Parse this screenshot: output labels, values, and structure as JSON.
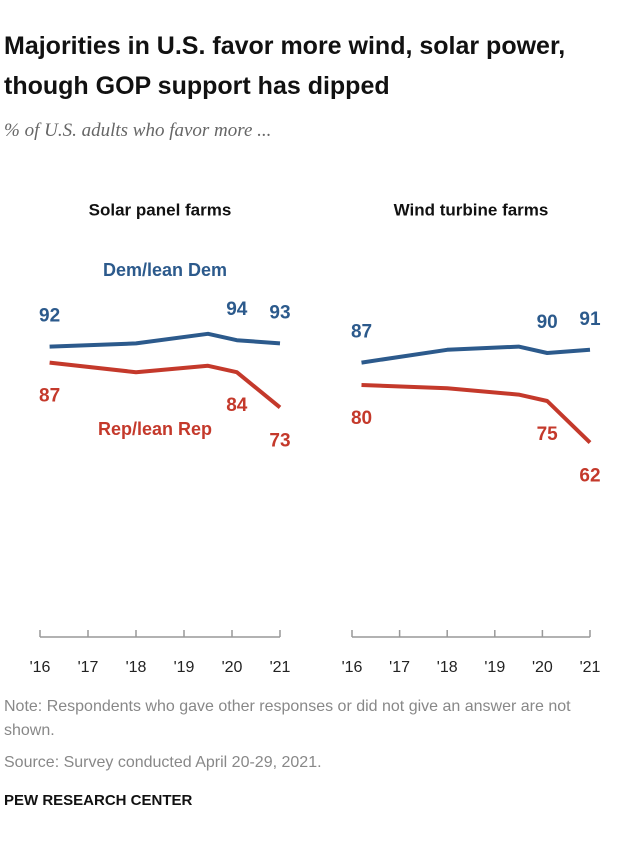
{
  "title": "Majorities in U.S. favor more wind, solar power, though GOP support has dipped",
  "subtitle": "% of U.S. adults who favor more ...",
  "note": "Note: Respondents who gave other responses or did not give an answer are not shown.",
  "source": "Source: Survey conducted April 20-29, 2021.",
  "credit": "PEW RESEARCH CENTER",
  "chart_data": [
    {
      "type": "line",
      "title": "Solar panel farms",
      "x": [
        2016.2,
        2018,
        2019.5,
        2020.1,
        2021
      ],
      "xlim": [
        2016,
        2021
      ],
      "xticks": [
        {
          "value": 2016,
          "label": "'16"
        },
        {
          "value": 2017,
          "label": "'17"
        },
        {
          "value": 2018,
          "label": "'18"
        },
        {
          "value": 2019,
          "label": "'19"
        },
        {
          "value": 2020,
          "label": "'20"
        },
        {
          "value": 2021,
          "label": "'21"
        }
      ],
      "ylim": [
        0,
        100
      ],
      "series": [
        {
          "name": "Dem/lean Dem",
          "color": "#2c5a8c",
          "values": [
            92,
            93,
            96,
            94,
            93
          ],
          "value_labels": [
            "92",
            null,
            null,
            "94",
            "93"
          ]
        },
        {
          "name": "Rep/lean Rep",
          "color": "#c4392b",
          "values": [
            87,
            84,
            86,
            84,
            73
          ],
          "value_labels": [
            "87",
            null,
            null,
            "84",
            "73"
          ]
        }
      ]
    },
    {
      "type": "line",
      "title": "Wind turbine farms",
      "x": [
        2016.2,
        2018,
        2019.5,
        2020.1,
        2021
      ],
      "xlim": [
        2016,
        2021
      ],
      "xticks": [
        {
          "value": 2016,
          "label": "'16"
        },
        {
          "value": 2017,
          "label": "'17"
        },
        {
          "value": 2018,
          "label": "'18"
        },
        {
          "value": 2019,
          "label": "'19"
        },
        {
          "value": 2020,
          "label": "'20"
        },
        {
          "value": 2021,
          "label": "'21"
        }
      ],
      "ylim": [
        0,
        100
      ],
      "series": [
        {
          "color": "#2c5a8c",
          "values": [
            87,
            91,
            92,
            90,
            91
          ],
          "value_labels": [
            "87",
            null,
            null,
            "90",
            "91"
          ]
        },
        {
          "color": "#c4392b",
          "values": [
            80,
            79,
            77,
            75,
            62
          ],
          "value_labels": [
            "80",
            null,
            null,
            "75",
            "62"
          ]
        }
      ]
    }
  ]
}
